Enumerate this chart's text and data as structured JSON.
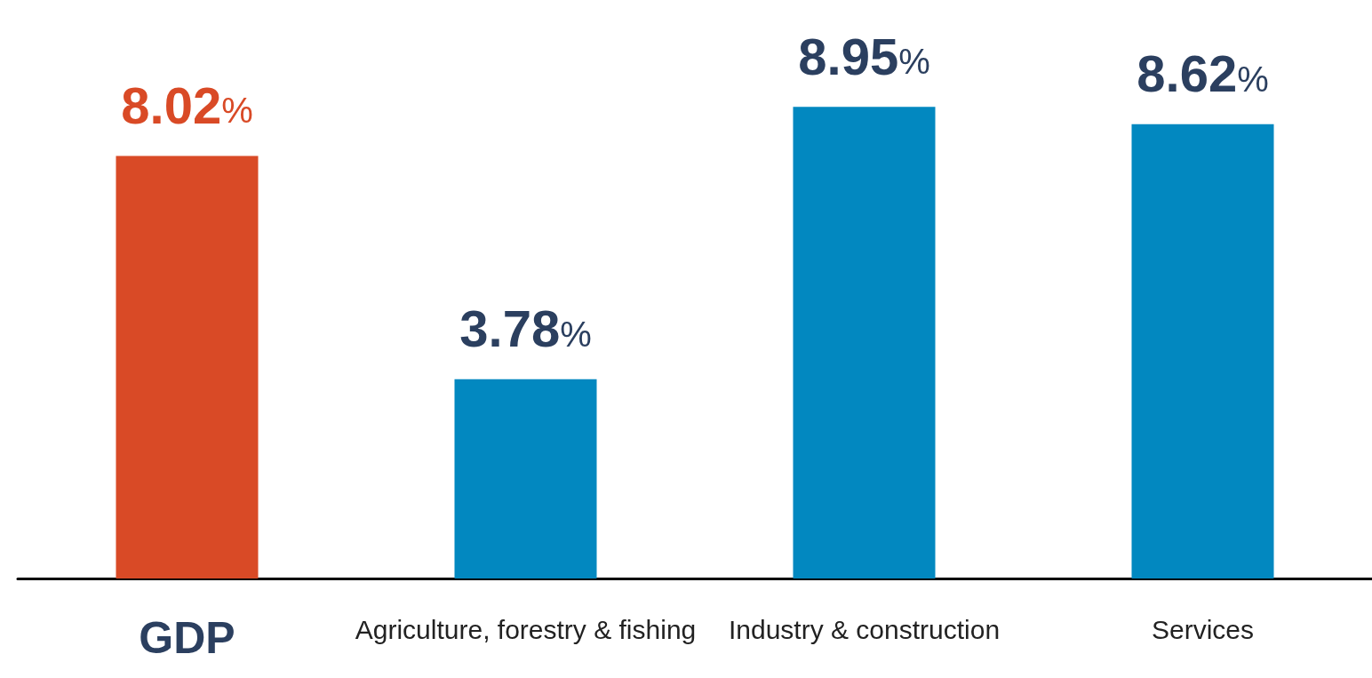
{
  "chart_data": {
    "type": "bar",
    "categories": [
      "GDP",
      "Agriculture, forestry & fishing",
      "Industry & construction",
      "Services"
    ],
    "values": [
      8.02,
      3.78,
      8.95,
      8.62
    ],
    "colors": [
      "#d94a26",
      "#0288c0",
      "#0288c0",
      "#0288c0"
    ],
    "value_labels": [
      "8.02%",
      "3.78%",
      "8.95%",
      "8.62%"
    ]
  }
}
